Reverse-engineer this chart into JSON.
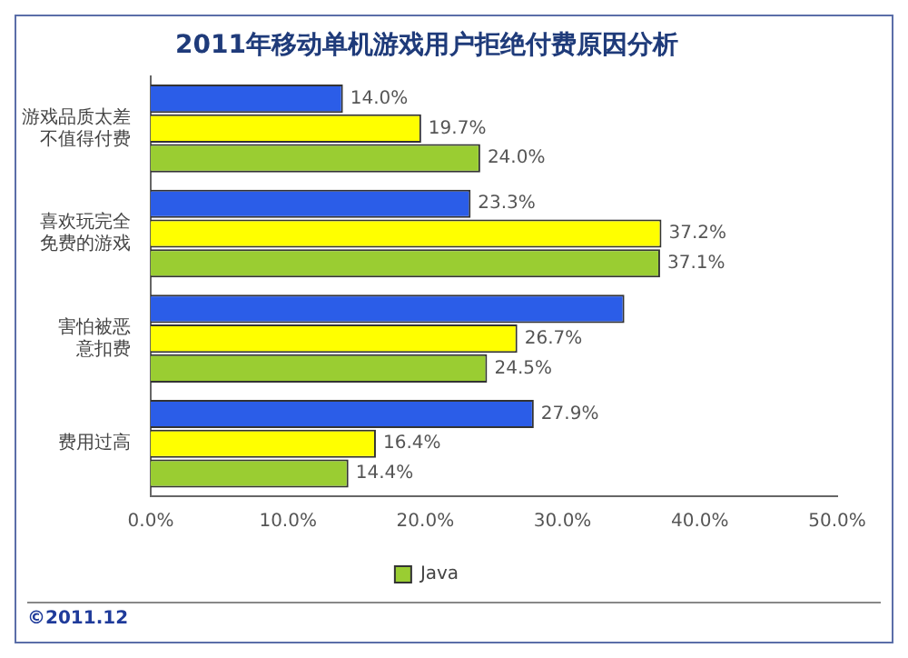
{
  "chart_data": {
    "type": "bar",
    "orientation": "horizontal",
    "title": "2011年移动单机游戏用户拒绝付费原因分析",
    "categories": [
      "游戏品质太差不值得付费",
      "喜欢玩完全免费的游戏",
      "害怕被恶意扣费",
      "费用过高"
    ],
    "series": [
      {
        "color": "#2b5de8",
        "values": [
          14.0,
          23.3,
          34.5,
          27.9
        ],
        "value_labels": [
          "14.0%",
          "23.3%",
          null,
          "27.9%"
        ]
      },
      {
        "color": "#ffff00",
        "values": [
          19.7,
          37.2,
          26.7,
          16.4
        ],
        "value_labels": [
          "19.7%",
          "37.2%",
          "26.7%",
          "16.4%"
        ]
      },
      {
        "name": "Java",
        "color": "#9acd32",
        "values": [
          24.0,
          37.1,
          24.5,
          14.4
        ],
        "value_labels": [
          "24.0%",
          "37.1%",
          "24.5%",
          "14.4%"
        ]
      }
    ],
    "xlim": [
      0,
      50
    ],
    "xticks": [
      {
        "value": 0,
        "label": "0.0%"
      },
      {
        "value": 10,
        "label": "10.0%"
      },
      {
        "value": 20,
        "label": "20.0%"
      },
      {
        "value": 30,
        "label": "30.0%"
      },
      {
        "value": 40,
        "label": "40.0%"
      },
      {
        "value": 50,
        "label": "50.0%"
      }
    ],
    "grid": false,
    "legend": "bottom",
    "annotations": [
      "©2011.12"
    ]
  }
}
